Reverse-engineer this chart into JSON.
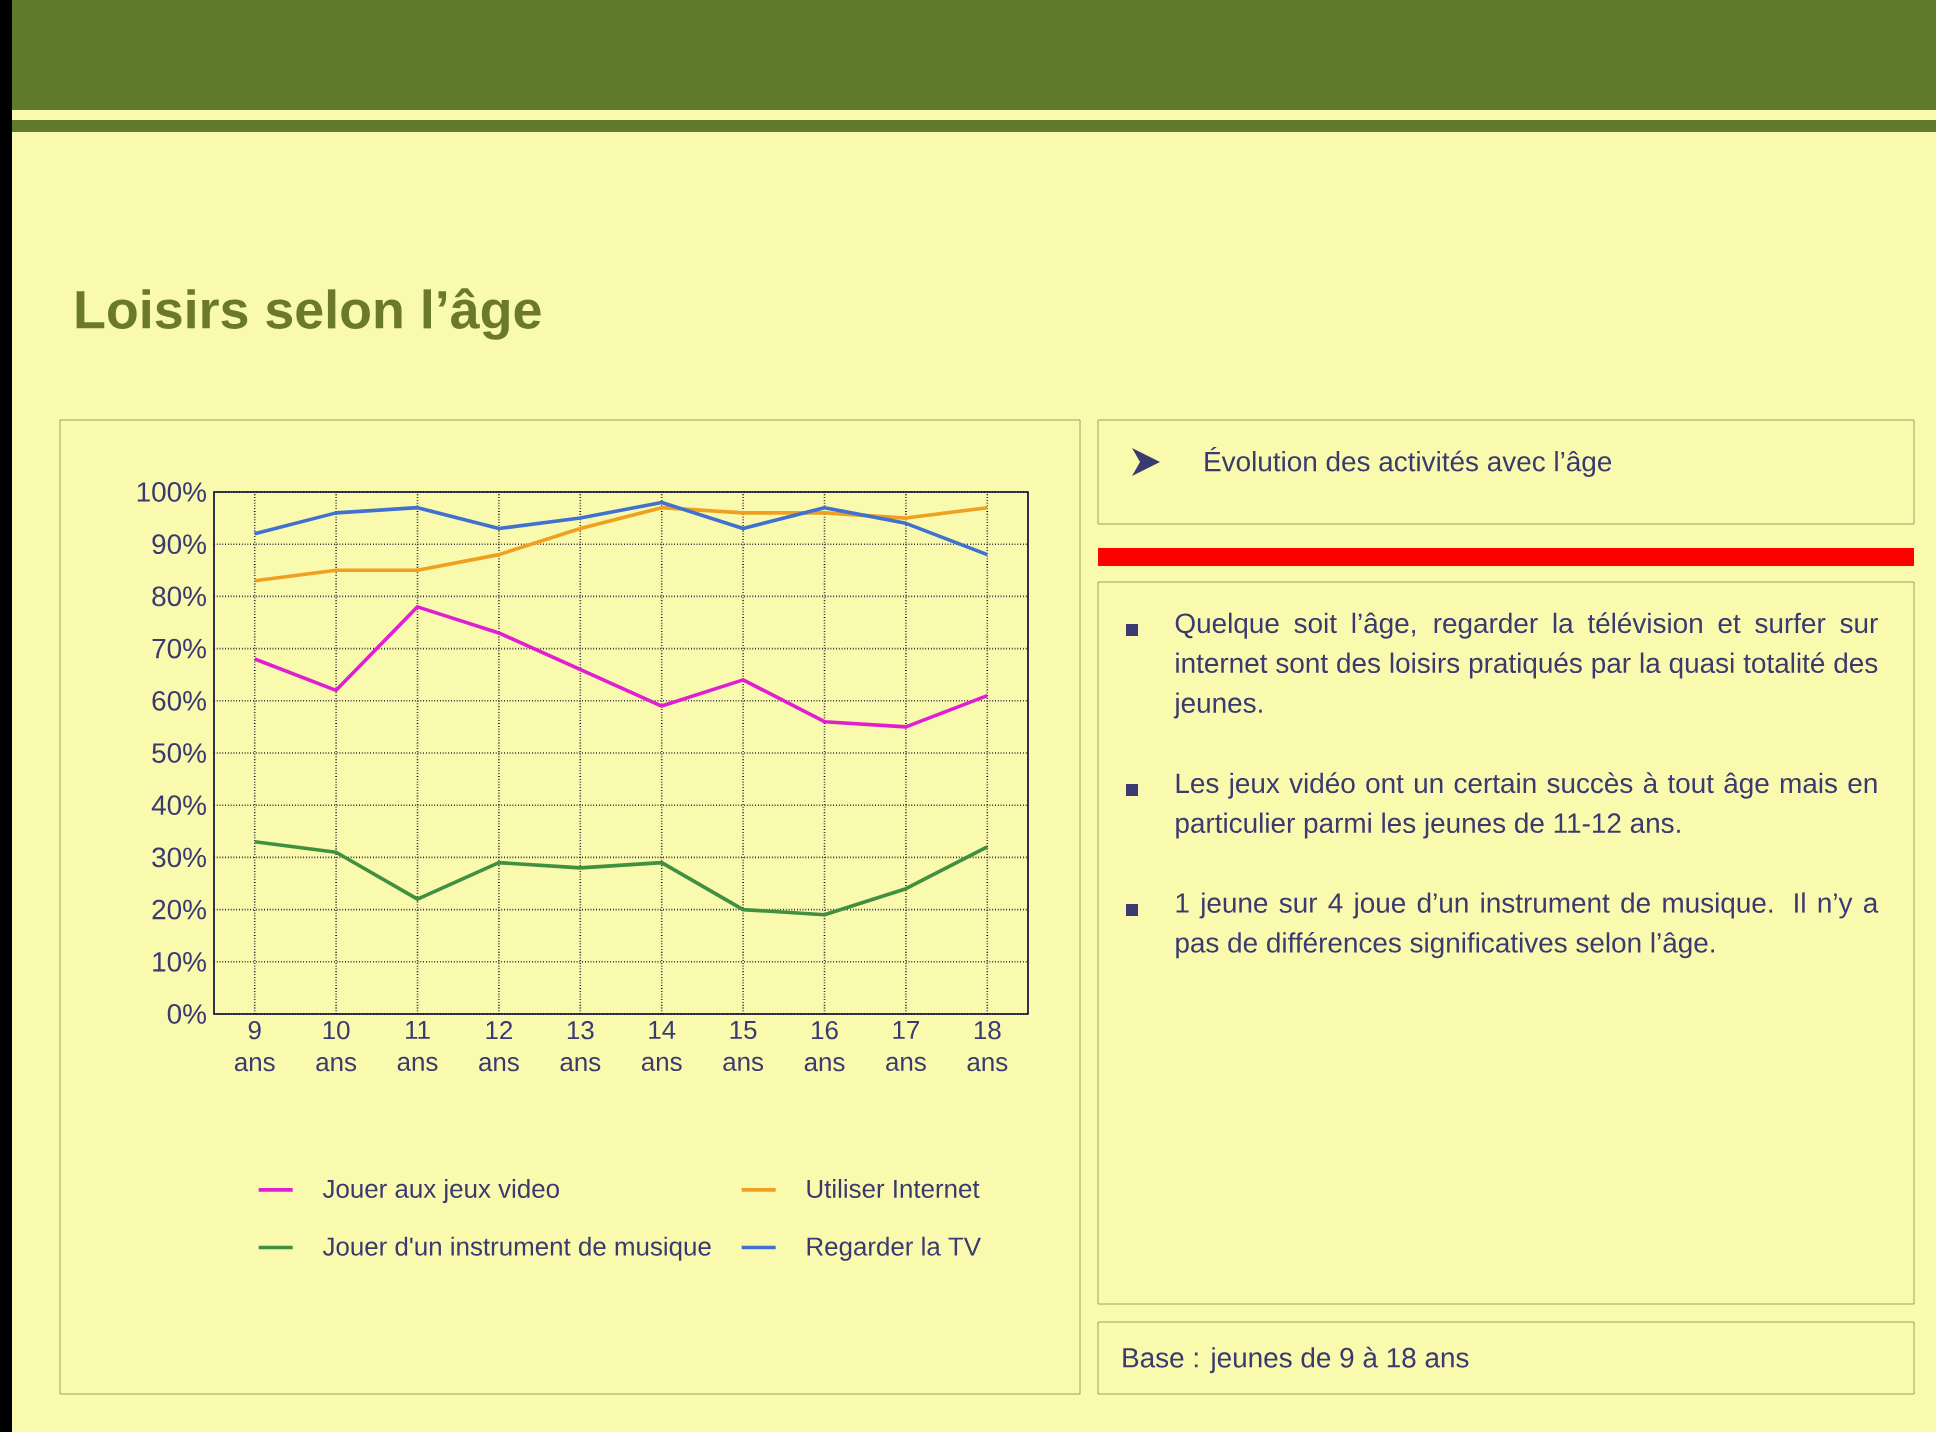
{
  "chart_data": {
    "type": "line",
    "title": "Loisirs selon l’âge",
    "categories": [
      "9 ans",
      "10 ans",
      "11 ans",
      "12 ans",
      "13 ans",
      "14 ans",
      "15 ans",
      "16 ans",
      "17 ans",
      "18 ans"
    ],
    "series": [
      {
        "name": "Jouer aux jeux video",
        "color": "#e020d0",
        "values": [
          68,
          62,
          78,
          73,
          66,
          59,
          64,
          56,
          55,
          61
        ]
      },
      {
        "name": "Utiliser Internet",
        "color": "#f0a020",
        "values": [
          83,
          85,
          85,
          88,
          93,
          97,
          96,
          96,
          95,
          97
        ]
      },
      {
        "name": "Jouer d'un instrument de musique",
        "color": "#409040",
        "values": [
          33,
          31,
          22,
          29,
          28,
          29,
          20,
          19,
          24,
          32
        ]
      },
      {
        "name": "Regarder la TV",
        "color": "#4070d0",
        "values": [
          92,
          96,
          97,
          93,
          95,
          98,
          93,
          97,
          94,
          88
        ]
      }
    ],
    "ylim": [
      0,
      100
    ],
    "yticks": [
      {
        "value": 0,
        "label": "0%"
      },
      {
        "value": 10,
        "label": "10%"
      },
      {
        "value": 20,
        "label": "20%"
      },
      {
        "value": 30,
        "label": "30%"
      },
      {
        "value": 40,
        "label": "40%"
      },
      {
        "value": 50,
        "label": "50%"
      },
      {
        "value": 60,
        "label": "60%"
      },
      {
        "value": 70,
        "label": "70%"
      },
      {
        "value": 80,
        "label": "80%"
      },
      {
        "value": 90,
        "label": "90%"
      },
      {
        "value": 100,
        "label": "100%"
      }
    ],
    "grid": true,
    "legend": "bottom",
    "marker": "none",
    "line_style": "solid",
    "annotations": [
      "Évolution des activités avec l’âge",
      "Quelque soit l’âge, regarder la télévision et surfer sur internet sont des loisirs pratiqués par la quasi totalité des jeunes.",
      "Les jeux vidéo ont un certain succès à tout âge mais en particulier parmi les jeunes de 11-12 ans.",
      "1 jeune sur 4 joue d’un instrument de musique. Il n’y a pas de différences significatives selon l’âge.",
      "Base : jeunes de 9 à 18 ans"
    ]
  }
}
